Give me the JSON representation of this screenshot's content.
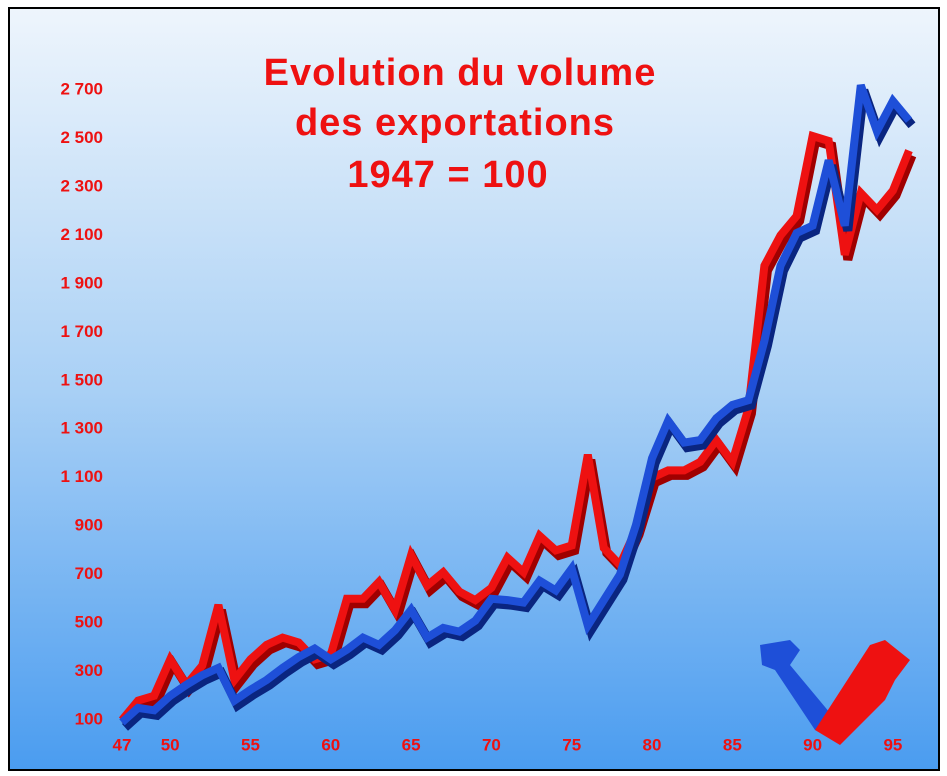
{
  "chart_data": {
    "type": "line",
    "title_lines": [
      "Evolution du volume",
      "des exportations",
      "1947 = 100"
    ],
    "x": [
      47,
      48,
      49,
      50,
      51,
      52,
      53,
      54,
      55,
      56,
      57,
      58,
      59,
      60,
      61,
      62,
      63,
      64,
      65,
      66,
      67,
      68,
      69,
      70,
      71,
      72,
      73,
      74,
      75,
      76,
      77,
      78,
      79,
      80,
      81,
      82,
      83,
      84,
      85,
      86,
      87,
      88,
      89,
      90,
      91,
      92,
      93,
      94,
      95,
      96
    ],
    "series": [
      {
        "color": "#ee1111",
        "shade": "#a00000",
        "values": [
          100,
          180,
          200,
          350,
          245,
          325,
          575,
          265,
          350,
          410,
          440,
          420,
          350,
          370,
          600,
          600,
          670,
          555,
          780,
          655,
          710,
          630,
          595,
          645,
          770,
          710,
          860,
          800,
          820,
          1195,
          810,
          740,
          885,
          1100,
          1130,
          1130,
          1165,
          1255,
          1165,
          1385,
          1975,
          2100,
          2180,
          2510,
          2490,
          2020,
          2275,
          2205,
          2285,
          2450
        ]
      },
      {
        "color": "#1e4fd8",
        "shade": "#0a2580",
        "values": [
          90,
          150,
          140,
          200,
          245,
          285,
          315,
          180,
          225,
          265,
          315,
          360,
          395,
          350,
          390,
          440,
          410,
          470,
          555,
          440,
          480,
          465,
          510,
          600,
          595,
          585,
          675,
          635,
          725,
          490,
          595,
          700,
          905,
          1180,
          1335,
          1245,
          1255,
          1345,
          1400,
          1420,
          1665,
          1975,
          2110,
          2140,
          2410,
          2140,
          2720,
          2530,
          2655,
          2575
        ]
      }
    ],
    "xlim": [
      47,
      96
    ],
    "xticks": [
      47,
      50,
      55,
      60,
      65,
      70,
      75,
      80,
      85,
      90,
      95
    ],
    "ylim": [
      100,
      2700
    ],
    "yticks": [
      100,
      300,
      500,
      700,
      900,
      {
        "value": 1100,
        "label": "1 100"
      },
      {
        "value": 1300,
        "label": "1 300"
      },
      {
        "value": 1500,
        "label": "1 500"
      },
      {
        "value": 1700,
        "label": "1 700"
      },
      {
        "value": 1900,
        "label": "1 900"
      },
      {
        "value": 2100,
        "label": "2 100"
      },
      {
        "value": 2300,
        "label": "2 300"
      },
      {
        "value": 2500,
        "label": "2 500"
      },
      {
        "value": 2700,
        "label": "2 700"
      }
    ]
  }
}
